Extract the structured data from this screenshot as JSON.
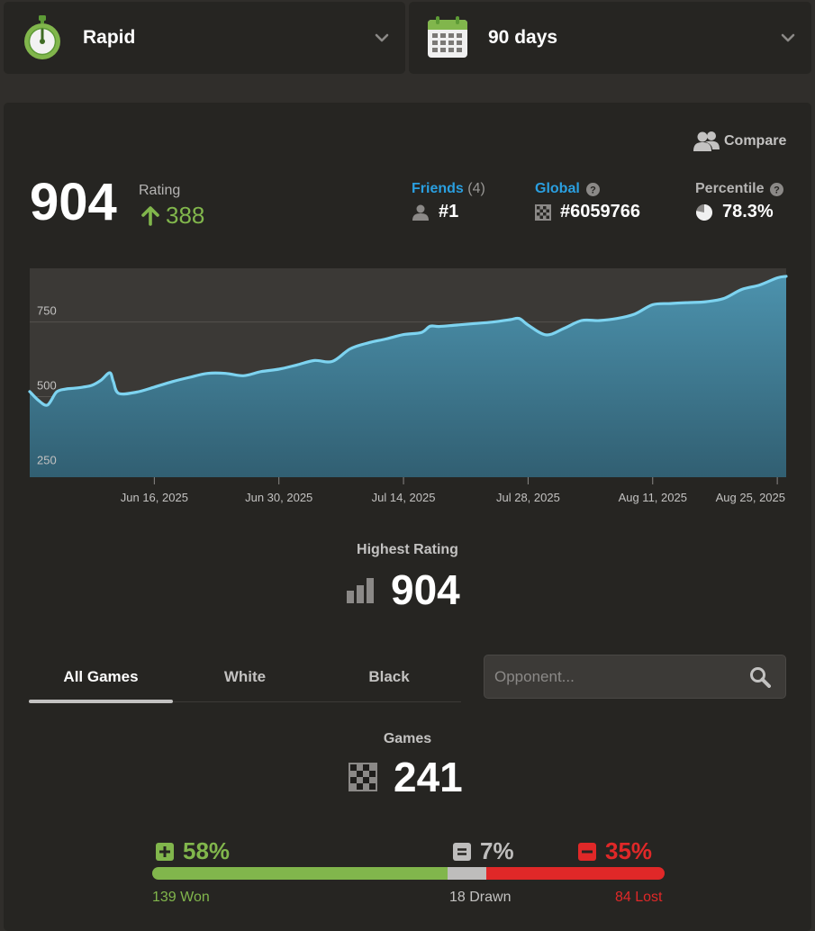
{
  "selectors": {
    "time_class": "Rapid",
    "period": "90 days"
  },
  "compare_label": "Compare",
  "rating": {
    "label": "Rating",
    "value": "904",
    "change": "388"
  },
  "stats": {
    "friends": {
      "label": "Friends",
      "count": "(4)",
      "value": "#1"
    },
    "global": {
      "label": "Global",
      "value": "#6059766"
    },
    "percentile": {
      "label": "Percentile",
      "value": "78.3%",
      "fraction": 0.783
    }
  },
  "chart_data": {
    "type": "area",
    "title": "",
    "xlabel": "",
    "ylabel": "",
    "ylim": [
      230,
      930
    ],
    "yticks": [
      "250",
      "500",
      "750"
    ],
    "ytick_values": [
      250,
      500,
      750
    ],
    "xticks": [
      "Jun 16, 2025",
      "Jun 30, 2025",
      "Jul 14, 2025",
      "Jul 28, 2025",
      "Aug 11, 2025",
      "Aug 25, 2025"
    ],
    "xtick_days": [
      14,
      28,
      42,
      56,
      70,
      84
    ],
    "x_days": [
      0,
      1,
      2,
      3,
      4,
      5,
      6,
      7,
      8,
      9,
      9.4,
      10,
      12,
      14,
      16,
      18,
      20,
      22,
      24,
      26,
      28,
      30,
      32,
      34,
      36,
      38,
      40,
      42,
      44,
      45,
      46,
      48,
      50,
      52,
      54,
      55,
      56,
      58,
      60,
      62,
      64,
      66,
      68,
      70,
      72,
      74,
      76,
      78,
      80,
      82,
      84,
      85
    ],
    "y": [
      517,
      487,
      472,
      515,
      525,
      528,
      532,
      538,
      555,
      580,
      550,
      511,
      515,
      532,
      550,
      565,
      578,
      578,
      570,
      584,
      592,
      606,
      621,
      618,
      660,
      680,
      693,
      708,
      715,
      736,
      735,
      740,
      745,
      750,
      758,
      762,
      740,
      707,
      728,
      755,
      755,
      762,
      777,
      808,
      812,
      815,
      818,
      829,
      859,
      874,
      898,
      903
    ],
    "line_color": "#7dd3f0",
    "fill_top": "#4c92ad",
    "fill_bottom": "#315f72",
    "grid": true
  },
  "highest": {
    "label": "Highest Rating",
    "value": "904"
  },
  "tabs": [
    "All Games",
    "White",
    "Black"
  ],
  "search": {
    "placeholder": "Opponent..."
  },
  "games": {
    "label": "Games",
    "value": "241"
  },
  "results": {
    "won_pct": "58%",
    "drawn_pct": "7%",
    "lost_pct": "35%",
    "won_label": "139 Won",
    "drawn_label": "18 Drawn",
    "lost_label": "84 Lost",
    "won": 139,
    "drawn": 18,
    "lost": 84,
    "colors": {
      "won": "#81b64c",
      "drawn": "#bebdbc",
      "lost": "#e02828"
    }
  }
}
